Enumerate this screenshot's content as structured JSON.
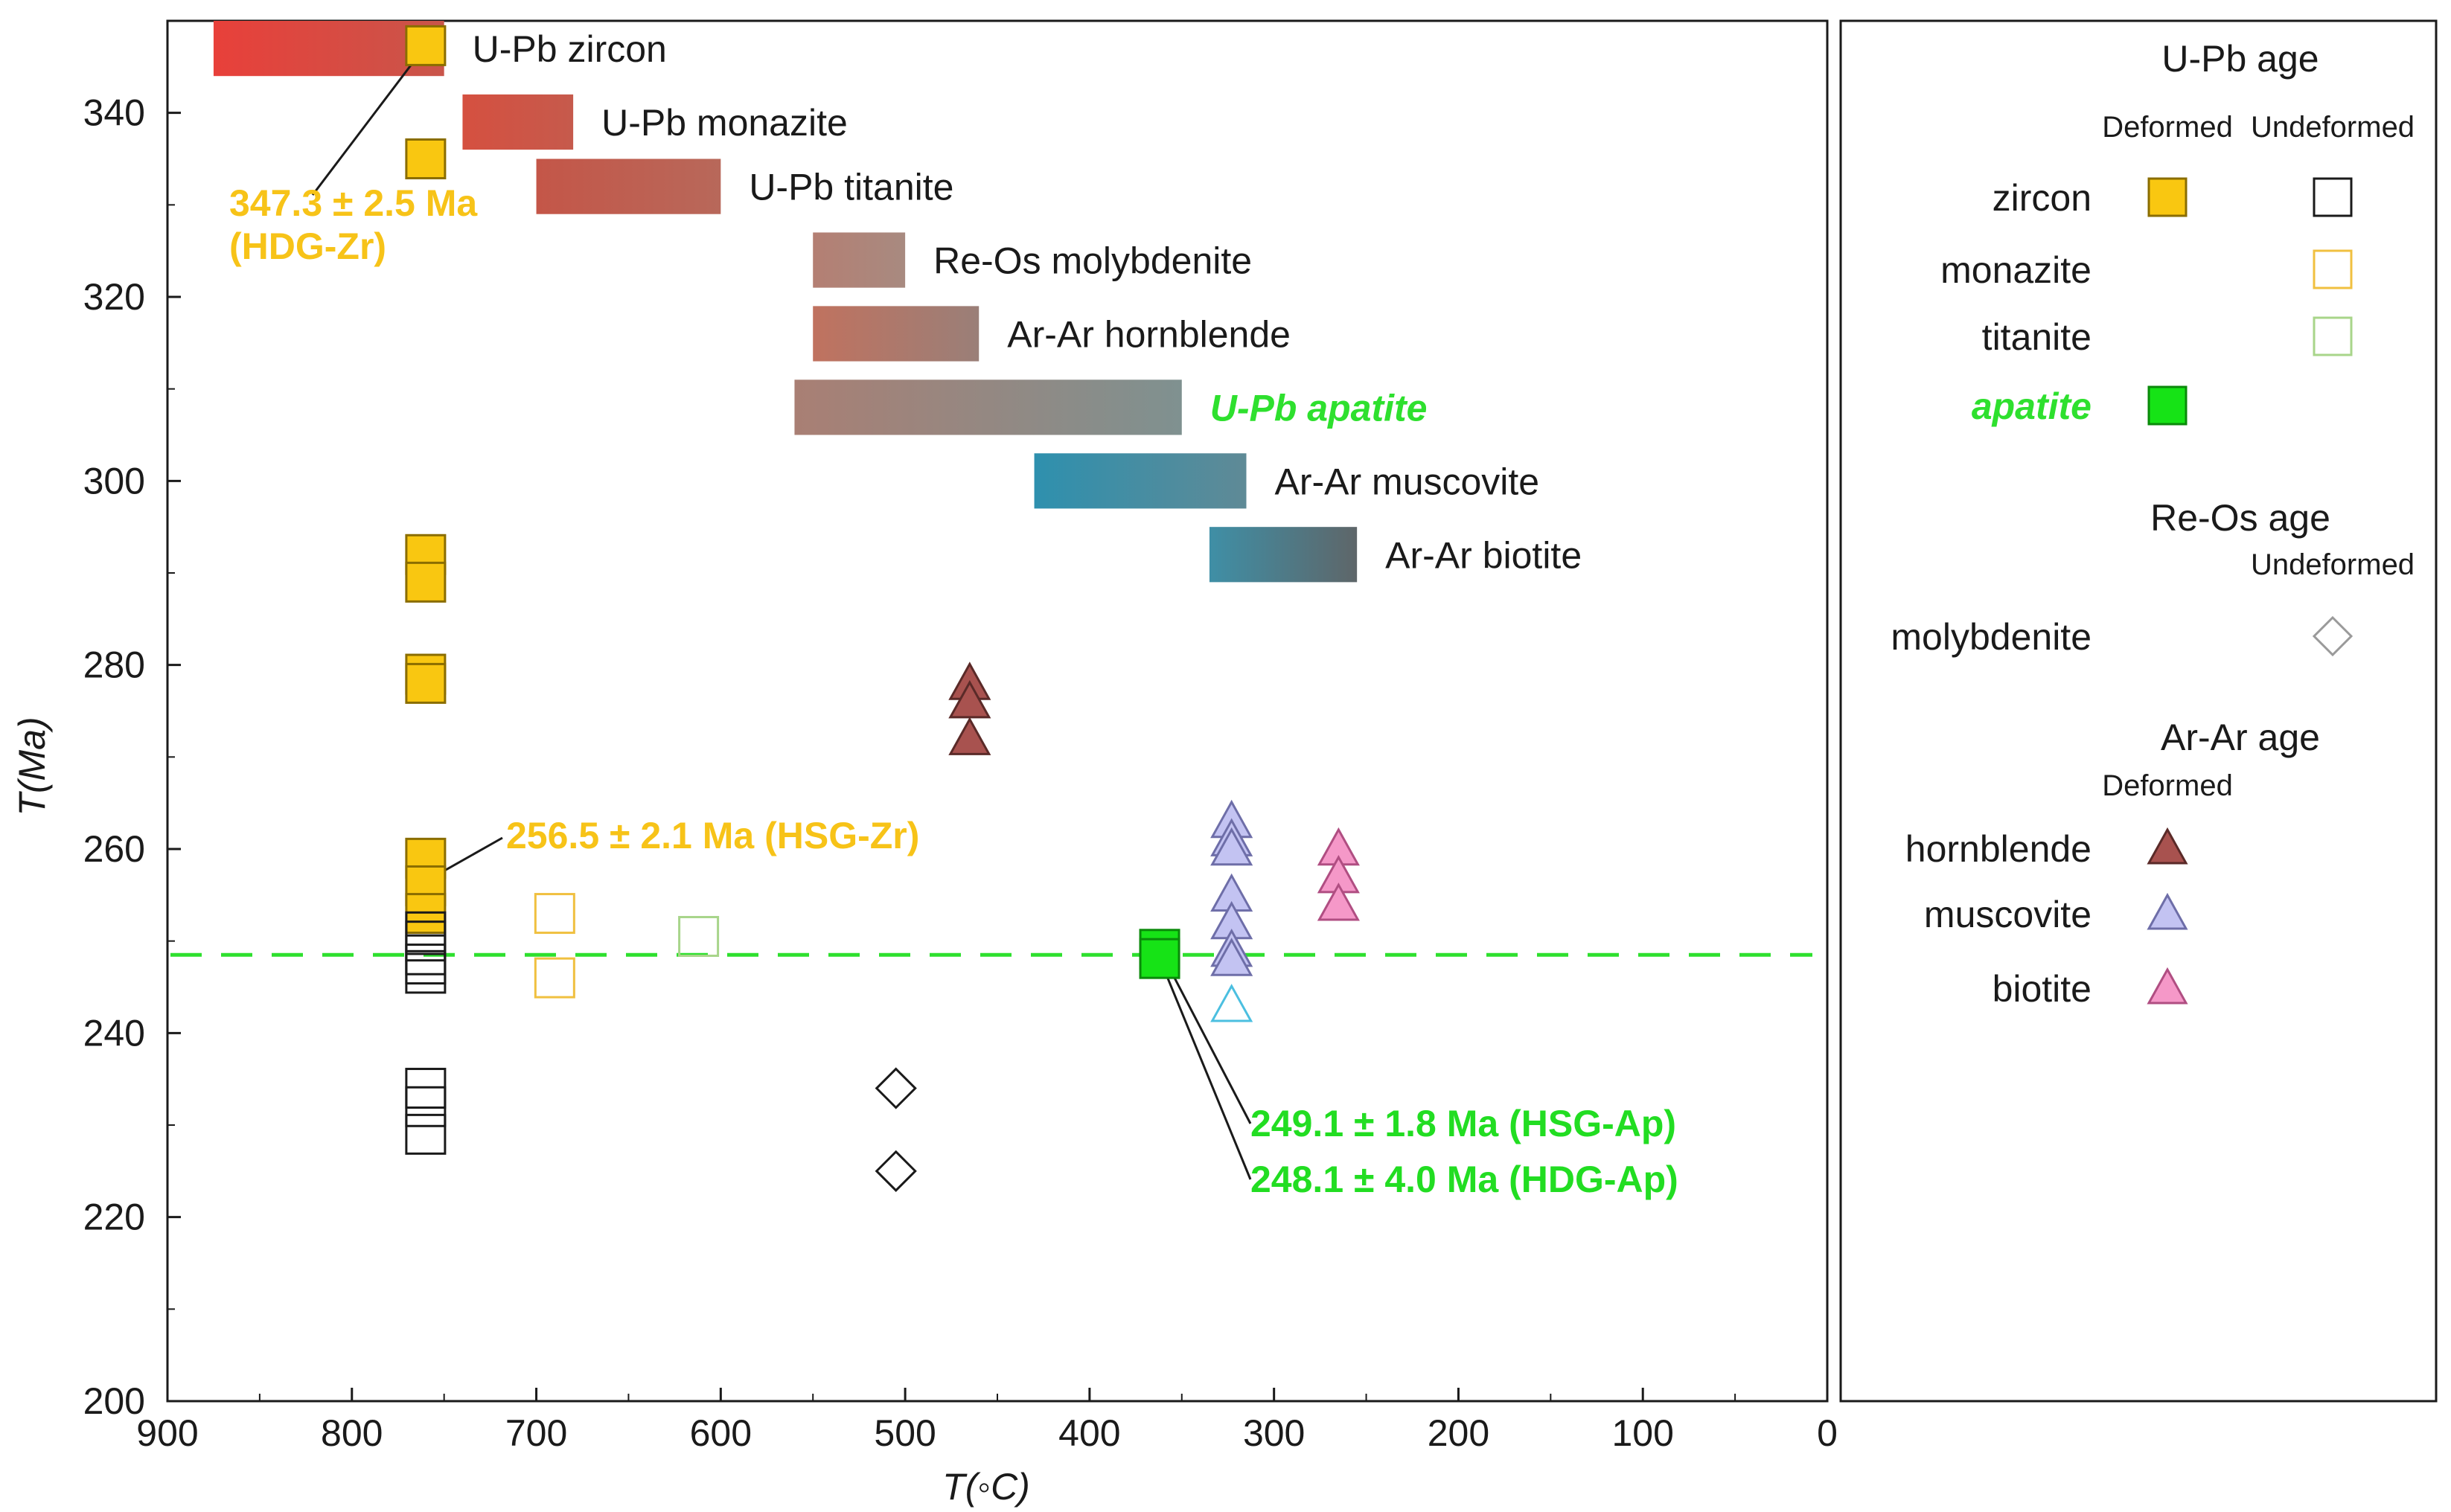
{
  "chart_data": {
    "type": "scatter",
    "xlabel": "T(◦C)",
    "ylabel": "T(Ma)",
    "xlim": [
      900,
      0
    ],
    "ylim": [
      200,
      350
    ],
    "x_ticks": [
      {
        "value": 900,
        "label": "900"
      },
      {
        "value": 800,
        "label": "800"
      },
      {
        "value": 700,
        "label": "700"
      },
      {
        "value": 600,
        "label": "600"
      },
      {
        "value": 500,
        "label": "500"
      },
      {
        "value": 400,
        "label": "400"
      },
      {
        "value": 300,
        "label": "300"
      },
      {
        "value": 200,
        "label": "200"
      },
      {
        "value": 100,
        "label": "100"
      },
      {
        "value": 0,
        "label": "0"
      }
    ],
    "y_ticks": [
      {
        "value": 200,
        "label": "200"
      },
      {
        "value": 220,
        "label": "220"
      },
      {
        "value": 240,
        "label": "240"
      },
      {
        "value": 260,
        "label": "260"
      },
      {
        "value": 280,
        "label": "280"
      },
      {
        "value": 300,
        "label": "300"
      },
      {
        "value": 320,
        "label": "320"
      },
      {
        "value": 340,
        "label": "340"
      }
    ],
    "closure_bars": [
      {
        "label": "U-Pb zircon",
        "x_hot": 875,
        "x_cold": 750,
        "age_top": 350,
        "age_bottom": 344,
        "color_hot": "#e8403a",
        "color_cold": "#c9554a",
        "label_color": "#1a1a1a",
        "italic": false
      },
      {
        "label": "U-Pb monazite",
        "x_hot": 740,
        "x_cold": 680,
        "age_top": 342,
        "age_bottom": 336,
        "color_hot": "#d55040",
        "color_cold": "#c65a4c",
        "label_color": "#1a1a1a",
        "italic": false
      },
      {
        "label": "U-Pb titanite",
        "x_hot": 700,
        "x_cold": 600,
        "age_top": 335,
        "age_bottom": 329,
        "color_hot": "#c45648",
        "color_cold": "#b8685a",
        "label_color": "#1a1a1a",
        "italic": false
      },
      {
        "label": "Re-Os molybdenite",
        "x_hot": 550,
        "x_cold": 500,
        "age_top": 327,
        "age_bottom": 321,
        "color_hot": "#b47f73",
        "color_cold": "#a88a80",
        "label_color": "#1a1a1a",
        "italic": false
      },
      {
        "label": "Ar-Ar hornblende",
        "x_hot": 550,
        "x_cold": 460,
        "age_top": 319,
        "age_bottom": 313,
        "color_hot": "#c0725f",
        "color_cold": "#9a7f78",
        "label_color": "#1a1a1a",
        "italic": false
      },
      {
        "label": "U-Pb apatite",
        "x_hot": 560,
        "x_cold": 350,
        "age_top": 311,
        "age_bottom": 305,
        "color_hot": "#a97f74",
        "color_cold": "#7f9190",
        "label_color": "#2ee02e",
        "italic": true
      },
      {
        "label": "Ar-Ar muscovite",
        "x_hot": 430,
        "x_cold": 315,
        "age_top": 303,
        "age_bottom": 297,
        "color_hot": "#2e90ae",
        "color_cold": "#5f8a96",
        "label_color": "#1a1a1a",
        "italic": false
      },
      {
        "label": "Ar-Ar biotite",
        "x_hot": 335,
        "x_cold": 255,
        "age_top": 295,
        "age_bottom": 289,
        "color_hot": "#3f8fa6",
        "color_cold": "#5e6669",
        "label_color": "#1a1a1a",
        "italic": false
      }
    ],
    "series": [
      {
        "name": "zircon",
        "group": "Deformed",
        "marker": "square",
        "filled": true,
        "fill": "#f9c711",
        "stroke": "#8a6d00",
        "points": [
          [
            760,
            347.3
          ],
          [
            760,
            335
          ],
          [
            760,
            292
          ],
          [
            760,
            289
          ],
          [
            760,
            279
          ],
          [
            760,
            278
          ],
          [
            760,
            259
          ],
          [
            760,
            256
          ],
          [
            760,
            253
          ]
        ]
      },
      {
        "name": "zircon",
        "group": "Undeformed",
        "marker": "square",
        "filled": false,
        "fill": "none",
        "stroke": "#1a1a1a",
        "points": [
          [
            760,
            251
          ],
          [
            760,
            250
          ],
          [
            760,
            248.5
          ],
          [
            760,
            247.5
          ],
          [
            760,
            246.5
          ],
          [
            760,
            234
          ],
          [
            760,
            232
          ],
          [
            760,
            229
          ]
        ]
      },
      {
        "name": "monazite",
        "group": "Undeformed",
        "marker": "square",
        "filled": false,
        "fill": "none",
        "stroke": "#f0c040",
        "points": [
          [
            690,
            253
          ],
          [
            690,
            246
          ]
        ]
      },
      {
        "name": "titanite",
        "group": "Undeformed",
        "marker": "square",
        "filled": false,
        "fill": "none",
        "stroke": "#a8d58a",
        "points": [
          [
            612,
            250.5
          ]
        ]
      },
      {
        "name": "apatite",
        "group": "Deformed",
        "marker": "square",
        "filled": true,
        "fill": "#16e316",
        "stroke": "#0a8a0a",
        "points": [
          [
            362,
            249.1
          ],
          [
            362,
            248.1
          ]
        ]
      },
      {
        "name": "molybdenite",
        "group": "Undeformed",
        "marker": "diamond",
        "filled": false,
        "fill": "none",
        "stroke": "#1a1a1a",
        "points": [
          [
            505,
            234
          ],
          [
            505,
            225
          ]
        ]
      },
      {
        "name": "hornblende",
        "group": "Deformed",
        "marker": "triangle",
        "filled": true,
        "fill": "#a8524f",
        "stroke": "#5a2a28",
        "points": [
          [
            465,
            278
          ],
          [
            465,
            276
          ],
          [
            465,
            272
          ]
        ]
      },
      {
        "name": "muscovite",
        "group": "Deformed",
        "marker": "triangle",
        "filled": true,
        "fill": "#c3c3f2",
        "stroke": "#6e6ea8",
        "points": [
          [
            323,
            263
          ],
          [
            323,
            261
          ],
          [
            323,
            260
          ],
          [
            323,
            255
          ],
          [
            323,
            252
          ],
          [
            323,
            249
          ],
          [
            323,
            248
          ]
        ]
      },
      {
        "name": "muscovite",
        "group": "Undeformed",
        "marker": "triangle",
        "filled": false,
        "fill": "none",
        "stroke": "#4bbfe0",
        "points": [
          [
            323,
            243
          ]
        ]
      },
      {
        "name": "biotite",
        "group": "Deformed",
        "marker": "triangle",
        "filled": true,
        "fill": "#f598c8",
        "stroke": "#b04e82",
        "points": [
          [
            265,
            260
          ],
          [
            265,
            257
          ],
          [
            265,
            254
          ]
        ]
      }
    ],
    "reference_line": {
      "y": 248.5,
      "color": "#2ee02e"
    },
    "annotations": [
      {
        "id": "hdg-zr",
        "lines": [
          "347.3 ± 2.5 Ma",
          "(HDG-Zr)"
        ],
        "color": "#f7c318",
        "point": [
          760,
          347.3
        ]
      },
      {
        "id": "hsg-zr",
        "lines": [
          "256.5 ± 2.1 Ma (HSG-Zr)"
        ],
        "color": "#f7c318",
        "point": [
          760,
          256.5
        ]
      },
      {
        "id": "hsg-ap",
        "lines": [
          "249.1 ± 1.8 Ma (HSG-Ap)"
        ],
        "color": "#22dd22",
        "point": [
          362,
          249.1
        ]
      },
      {
        "id": "hdg-ap",
        "lines": [
          "248.1 ± 4.0 Ma (HDG-Ap)"
        ],
        "color": "#22dd22",
        "point": [
          362,
          248.1
        ]
      }
    ],
    "legend": {
      "placement": "right-panel",
      "sections": [
        {
          "title": "U-Pb age",
          "columns": [
            "Deformed",
            "Undeformed"
          ],
          "rows": [
            {
              "label": "zircon",
              "label_color": "#1a1a1a",
              "italic": false,
              "deformed": {
                "marker": "square",
                "fill": "#f9c711",
                "stroke": "#8a6d00"
              },
              "undeformed": {
                "marker": "square",
                "fill": "none",
                "stroke": "#1a1a1a"
              }
            },
            {
              "label": "monazite",
              "label_color": "#1a1a1a",
              "italic": false,
              "deformed": null,
              "undeformed": {
                "marker": "square",
                "fill": "none",
                "stroke": "#f0c040"
              }
            },
            {
              "label": "titanite",
              "label_color": "#1a1a1a",
              "italic": false,
              "deformed": null,
              "undeformed": {
                "marker": "square",
                "fill": "none",
                "stroke": "#a8d58a"
              }
            },
            {
              "label": "apatite",
              "label_color": "#2ee02e",
              "italic": true,
              "deformed": {
                "marker": "square",
                "fill": "#16e316",
                "stroke": "#0a8a0a"
              },
              "undeformed": null
            }
          ]
        },
        {
          "title": "Re-Os age",
          "columns": [
            "",
            "Undeformed"
          ],
          "rows": [
            {
              "label": "molybdenite",
              "label_color": "#1a1a1a",
              "italic": false,
              "deformed": null,
              "undeformed": {
                "marker": "diamond",
                "fill": "none",
                "stroke": "#9a9a9a"
              }
            }
          ]
        },
        {
          "title": "Ar-Ar age",
          "columns": [
            "Deformed",
            ""
          ],
          "rows": [
            {
              "label": "hornblende",
              "label_color": "#1a1a1a",
              "italic": false,
              "deformed": {
                "marker": "triangle",
                "fill": "#a8524f",
                "stroke": "#5a2a28"
              },
              "undeformed": null
            },
            {
              "label": "muscovite",
              "label_color": "#1a1a1a",
              "italic": false,
              "deformed": {
                "marker": "triangle",
                "fill": "#c3c3f2",
                "stroke": "#6e6ea8"
              },
              "undeformed": null
            },
            {
              "label": "biotite",
              "label_color": "#1a1a1a",
              "italic": false,
              "deformed": {
                "marker": "triangle",
                "fill": "#f598c8",
                "stroke": "#b04e82"
              },
              "undeformed": null
            }
          ]
        }
      ]
    }
  }
}
